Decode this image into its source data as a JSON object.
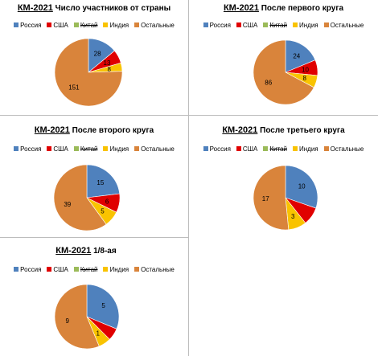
{
  "legend": {
    "items": [
      {
        "label": "Россия",
        "color": "#4f81bd",
        "strike": false
      },
      {
        "label": "США",
        "color": "#e00000",
        "strike": false
      },
      {
        "label": "Китай",
        "color": "#9bbb59",
        "strike": true
      },
      {
        "label": "Индия",
        "color": "#f9c300",
        "strike": false
      },
      {
        "label": "Остальные",
        "color": "#d9843b",
        "strike": false
      }
    ]
  },
  "chart_data": [
    {
      "type": "pie",
      "title_kw": "КМ-2021",
      "title_rest": " Число участников от страны",
      "categories": [
        "Россия",
        "США",
        "Китай",
        "Индия",
        "Остальные"
      ],
      "values": [
        28,
        13,
        0,
        8,
        151
      ],
      "data_labels": [
        "28",
        "13",
        "",
        "8",
        "151"
      ]
    },
    {
      "type": "pie",
      "title_kw": "КМ-2021",
      "title_rest": "  После первого круга",
      "categories": [
        "Россия",
        "США",
        "Китай",
        "Индия",
        "Остальные"
      ],
      "values": [
        24,
        10,
        0,
        8,
        86
      ],
      "data_labels": [
        "24",
        "10",
        "",
        "8",
        "86"
      ]
    },
    {
      "type": "pie",
      "title_kw": "КМ-2021",
      "title_rest": "  После второго круга",
      "categories": [
        "Россия",
        "США",
        "Китай",
        "Индия",
        "Остальные"
      ],
      "values": [
        15,
        6,
        0,
        5,
        39
      ],
      "data_labels": [
        "15",
        "6",
        "",
        "5",
        "39"
      ]
    },
    {
      "type": "pie",
      "title_kw": "КМ-2021",
      "title_rest": "  После третьего круга",
      "categories": [
        "Россия",
        "США",
        "Китай",
        "Индия",
        "Остальные"
      ],
      "values": [
        10,
        3,
        0,
        3,
        17
      ],
      "data_labels": [
        "10",
        "",
        "",
        "3",
        "17"
      ]
    },
    {
      "type": "pie",
      "title_kw": "КМ-2021",
      "title_rest": "         1/8-ая",
      "categories": [
        "Россия",
        "США",
        "Китай",
        "Индия",
        "Остальные"
      ],
      "values": [
        5,
        1,
        0,
        1,
        9
      ],
      "data_labels": [
        "5",
        "",
        "",
        "1",
        "9"
      ]
    }
  ]
}
